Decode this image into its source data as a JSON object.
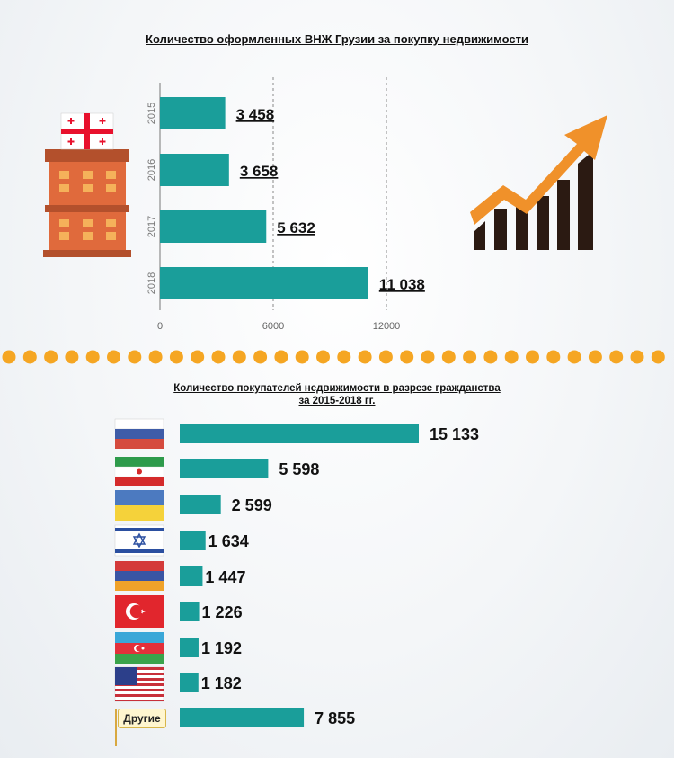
{
  "chart_data": [
    {
      "type": "bar",
      "orientation": "horizontal",
      "title": "Количество оформленных ВНЖ Грузии за покупку недвижимости",
      "categories": [
        "2015",
        "2016",
        "2017",
        "2018"
      ],
      "values": [
        3458,
        3658,
        5632,
        11038
      ],
      "value_labels": [
        "3 458",
        "3 658",
        "5 632",
        "11 038"
      ],
      "xticks": [
        "0",
        "6000",
        "12000"
      ],
      "xlim": [
        0,
        12000
      ],
      "grid": true,
      "bar_color": "#1a9e9a"
    },
    {
      "type": "bar",
      "orientation": "horizontal",
      "title": "Количество покупателей недвижимости в разрезе гражданства за 2015-2018 гг.",
      "categories": [
        "russia",
        "iran",
        "ukraine",
        "israel",
        "armenia",
        "turkey",
        "azerbaijan",
        "usa",
        "Другие"
      ],
      "values": [
        15133,
        5598,
        2599,
        1634,
        1447,
        1226,
        1192,
        1182,
        7855
      ],
      "value_labels": [
        "15 133",
        "5 598",
        "2 599",
        "1 634",
        "1 447",
        "1 226",
        "1 192",
        "1 182",
        "7 855"
      ],
      "bar_color": "#1a9e9a"
    }
  ],
  "title1": "Количество оформленных ВНЖ Грузии за покупку недвижимости",
  "title2_line1": "Количество покупателей недвижимости в разрезе гражданства",
  "title2_line2": "за 2015-2018 гг.",
  "other_label": "Другие",
  "colors": {
    "bar": "#1a9e9a",
    "dots": "#f5a623",
    "arrow": "#f0912a",
    "building": "#e06a3c",
    "dark_bars": "#2b1a12"
  },
  "icons": [
    "building-icon",
    "georgia-flag-icon",
    "growth-chart-icon",
    "russia-flag-icon",
    "iran-flag-icon",
    "ukraine-flag-icon",
    "israel-flag-icon",
    "armenia-flag-icon",
    "turkey-flag-icon",
    "azerbaijan-flag-icon",
    "usa-flag-icon"
  ]
}
